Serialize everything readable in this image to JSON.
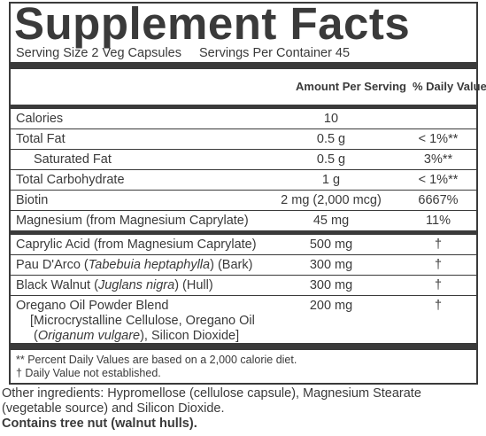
{
  "title": "Supplement Facts",
  "serving": {
    "size": "Serving Size 2 Veg Capsules",
    "servings": "Servings Per Container 45"
  },
  "header": {
    "amount": "Amount Per Serving",
    "dv": "% Daily Value"
  },
  "groups": [
    [
      {
        "name": "Calories",
        "amount": "10"
      },
      {
        "name": "Total Fat",
        "amount": "0.5 g",
        "dv": "< 1%**"
      },
      {
        "name": "Saturated Fat",
        "amount": "0.5 g",
        "dv": "3%**",
        "indent": true
      },
      {
        "name": "Total Carbohydrate",
        "amount": "1 g",
        "dv": "< 1%**"
      },
      {
        "name": "Biotin",
        "amount": "2 mg (2,000 mcg)",
        "dv": "6667%"
      },
      {
        "name": "Magnesium (from Magnesium Caprylate)",
        "amount": "45 mg",
        "dv": "11%"
      }
    ],
    [
      {
        "name": "Caprylic Acid (from Magnesium Caprylate)",
        "amount": "500 mg",
        "dv": "†"
      },
      {
        "name": [
          "Pau D'Arco (",
          "Tabebuia heptaphylla",
          ") (Bark)"
        ],
        "amount": "300 mg",
        "dv": "†"
      },
      {
        "name": [
          "Black Walnut (",
          "Juglans nigra",
          ") (Hull)"
        ],
        "amount": "300 mg",
        "dv": "†"
      },
      {
        "name": "Oregano Oil Powder Blend",
        "amount": "200 mg",
        "dv": "†",
        "detail": [
          [
            "[Microcrystalline Cellulose, Oregano Oil"
          ],
          [
            "(",
            "Origanum vulgare",
            "), Silicon Dioxide]"
          ]
        ]
      }
    ]
  ],
  "footnotes": [
    "** Percent Daily Values are based on a 2,000 calorie diet.",
    "† Daily Value not established."
  ],
  "other": {
    "ingredients": "Other ingredients: Hypromellose (cellulose capsule), Magnesium Stearate (vegetable source) and Silicon Dioxide.",
    "allergen": "Contains tree nut (walnut hulls)."
  }
}
